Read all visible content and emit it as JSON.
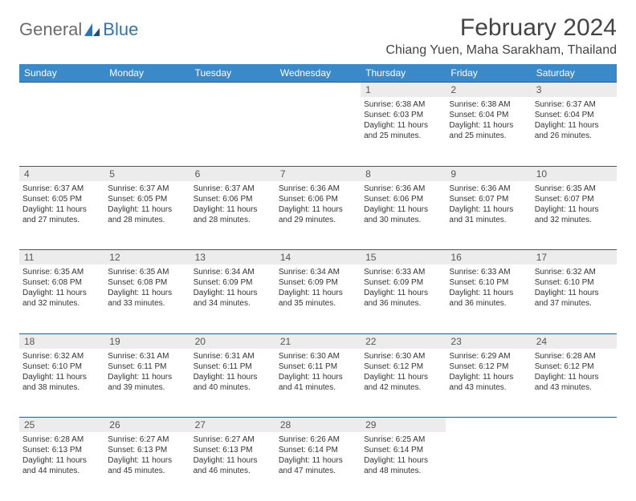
{
  "brand": {
    "word1": "General",
    "word2": "Blue"
  },
  "title": "February 2024",
  "location": "Chiang Yuen, Maha Sarakham, Thailand",
  "colors": {
    "header_bg": "#3a8ac9",
    "header_fg": "#ffffff",
    "border": "#2e5b8a",
    "daynum_bg": "#ececec",
    "text": "#333333",
    "brand_gray": "#6b6b6b",
    "brand_blue": "#2e75b6"
  },
  "day_headers": [
    "Sunday",
    "Monday",
    "Tuesday",
    "Wednesday",
    "Thursday",
    "Friday",
    "Saturday"
  ],
  "weeks": [
    {
      "nums": [
        "",
        "",
        "",
        "",
        "1",
        "2",
        "3"
      ],
      "cells": [
        null,
        null,
        null,
        null,
        {
          "sunrise": "Sunrise: 6:38 AM",
          "sunset": "Sunset: 6:03 PM",
          "daylight": "Daylight: 11 hours and 25 minutes."
        },
        {
          "sunrise": "Sunrise: 6:38 AM",
          "sunset": "Sunset: 6:04 PM",
          "daylight": "Daylight: 11 hours and 25 minutes."
        },
        {
          "sunrise": "Sunrise: 6:37 AM",
          "sunset": "Sunset: 6:04 PM",
          "daylight": "Daylight: 11 hours and 26 minutes."
        }
      ]
    },
    {
      "nums": [
        "4",
        "5",
        "6",
        "7",
        "8",
        "9",
        "10"
      ],
      "cells": [
        {
          "sunrise": "Sunrise: 6:37 AM",
          "sunset": "Sunset: 6:05 PM",
          "daylight": "Daylight: 11 hours and 27 minutes."
        },
        {
          "sunrise": "Sunrise: 6:37 AM",
          "sunset": "Sunset: 6:05 PM",
          "daylight": "Daylight: 11 hours and 28 minutes."
        },
        {
          "sunrise": "Sunrise: 6:37 AM",
          "sunset": "Sunset: 6:06 PM",
          "daylight": "Daylight: 11 hours and 28 minutes."
        },
        {
          "sunrise": "Sunrise: 6:36 AM",
          "sunset": "Sunset: 6:06 PM",
          "daylight": "Daylight: 11 hours and 29 minutes."
        },
        {
          "sunrise": "Sunrise: 6:36 AM",
          "sunset": "Sunset: 6:06 PM",
          "daylight": "Daylight: 11 hours and 30 minutes."
        },
        {
          "sunrise": "Sunrise: 6:36 AM",
          "sunset": "Sunset: 6:07 PM",
          "daylight": "Daylight: 11 hours and 31 minutes."
        },
        {
          "sunrise": "Sunrise: 6:35 AM",
          "sunset": "Sunset: 6:07 PM",
          "daylight": "Daylight: 11 hours and 32 minutes."
        }
      ]
    },
    {
      "nums": [
        "11",
        "12",
        "13",
        "14",
        "15",
        "16",
        "17"
      ],
      "cells": [
        {
          "sunrise": "Sunrise: 6:35 AM",
          "sunset": "Sunset: 6:08 PM",
          "daylight": "Daylight: 11 hours and 32 minutes."
        },
        {
          "sunrise": "Sunrise: 6:35 AM",
          "sunset": "Sunset: 6:08 PM",
          "daylight": "Daylight: 11 hours and 33 minutes."
        },
        {
          "sunrise": "Sunrise: 6:34 AM",
          "sunset": "Sunset: 6:09 PM",
          "daylight": "Daylight: 11 hours and 34 minutes."
        },
        {
          "sunrise": "Sunrise: 6:34 AM",
          "sunset": "Sunset: 6:09 PM",
          "daylight": "Daylight: 11 hours and 35 minutes."
        },
        {
          "sunrise": "Sunrise: 6:33 AM",
          "sunset": "Sunset: 6:09 PM",
          "daylight": "Daylight: 11 hours and 36 minutes."
        },
        {
          "sunrise": "Sunrise: 6:33 AM",
          "sunset": "Sunset: 6:10 PM",
          "daylight": "Daylight: 11 hours and 36 minutes."
        },
        {
          "sunrise": "Sunrise: 6:32 AM",
          "sunset": "Sunset: 6:10 PM",
          "daylight": "Daylight: 11 hours and 37 minutes."
        }
      ]
    },
    {
      "nums": [
        "18",
        "19",
        "20",
        "21",
        "22",
        "23",
        "24"
      ],
      "cells": [
        {
          "sunrise": "Sunrise: 6:32 AM",
          "sunset": "Sunset: 6:10 PM",
          "daylight": "Daylight: 11 hours and 38 minutes."
        },
        {
          "sunrise": "Sunrise: 6:31 AM",
          "sunset": "Sunset: 6:11 PM",
          "daylight": "Daylight: 11 hours and 39 minutes."
        },
        {
          "sunrise": "Sunrise: 6:31 AM",
          "sunset": "Sunset: 6:11 PM",
          "daylight": "Daylight: 11 hours and 40 minutes."
        },
        {
          "sunrise": "Sunrise: 6:30 AM",
          "sunset": "Sunset: 6:11 PM",
          "daylight": "Daylight: 11 hours and 41 minutes."
        },
        {
          "sunrise": "Sunrise: 6:30 AM",
          "sunset": "Sunset: 6:12 PM",
          "daylight": "Daylight: 11 hours and 42 minutes."
        },
        {
          "sunrise": "Sunrise: 6:29 AM",
          "sunset": "Sunset: 6:12 PM",
          "daylight": "Daylight: 11 hours and 43 minutes."
        },
        {
          "sunrise": "Sunrise: 6:28 AM",
          "sunset": "Sunset: 6:12 PM",
          "daylight": "Daylight: 11 hours and 43 minutes."
        }
      ]
    },
    {
      "nums": [
        "25",
        "26",
        "27",
        "28",
        "29",
        "",
        ""
      ],
      "cells": [
        {
          "sunrise": "Sunrise: 6:28 AM",
          "sunset": "Sunset: 6:13 PM",
          "daylight": "Daylight: 11 hours and 44 minutes."
        },
        {
          "sunrise": "Sunrise: 6:27 AM",
          "sunset": "Sunset: 6:13 PM",
          "daylight": "Daylight: 11 hours and 45 minutes."
        },
        {
          "sunrise": "Sunrise: 6:27 AM",
          "sunset": "Sunset: 6:13 PM",
          "daylight": "Daylight: 11 hours and 46 minutes."
        },
        {
          "sunrise": "Sunrise: 6:26 AM",
          "sunset": "Sunset: 6:14 PM",
          "daylight": "Daylight: 11 hours and 47 minutes."
        },
        {
          "sunrise": "Sunrise: 6:25 AM",
          "sunset": "Sunset: 6:14 PM",
          "daylight": "Daylight: 11 hours and 48 minutes."
        },
        null,
        null
      ]
    }
  ]
}
